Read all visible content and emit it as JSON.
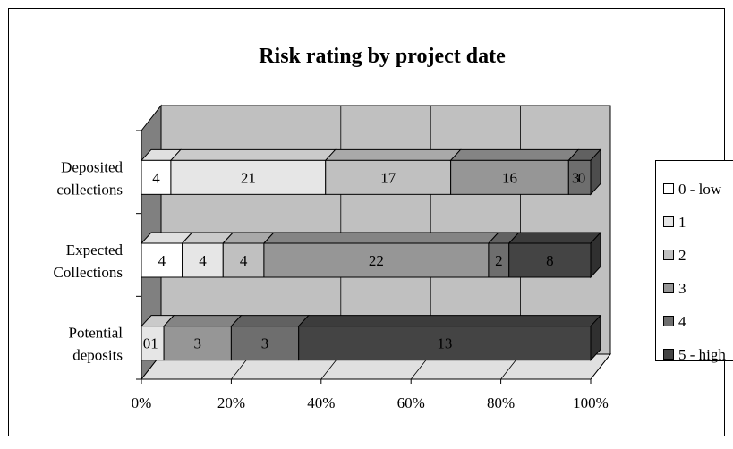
{
  "chart_data": {
    "type": "bar",
    "subtype": "100% stacked horizontal 3-D",
    "title": "Risk rating by project date",
    "categories": [
      "Deposited collections",
      "Expected Collections",
      "Potential deposits"
    ],
    "category_lines": [
      [
        "Deposited",
        "collections"
      ],
      [
        "Expected",
        "Collections"
      ],
      [
        "Potential",
        "deposits"
      ]
    ],
    "series": [
      {
        "name": "0 - low",
        "values": [
          4,
          4,
          0
        ],
        "color": "#ffffff"
      },
      {
        "name": "1",
        "values": [
          21,
          4,
          1
        ],
        "color": "#e6e6e6"
      },
      {
        "name": "2",
        "values": [
          17,
          4,
          0
        ],
        "color": "#c0c0c0"
      },
      {
        "name": "3",
        "values": [
          16,
          22,
          3
        ],
        "color": "#969696"
      },
      {
        "name": "4",
        "values": [
          3,
          2,
          3
        ],
        "color": "#6e6e6e"
      },
      {
        "name": "5 - high",
        "values": [
          0,
          8,
          13
        ],
        "color": "#444444"
      }
    ],
    "data_labels": [
      [
        "4",
        "21",
        "17",
        "16",
        "3",
        "0"
      ],
      [
        "4",
        "4",
        "4",
        "22",
        "2",
        "8"
      ],
      [
        "0",
        "1",
        "",
        "3",
        "3",
        "13"
      ]
    ],
    "x_ticks": [
      "0%",
      "20%",
      "40%",
      "60%",
      "80%",
      "100%"
    ],
    "xlim": [
      0,
      100
    ],
    "legend_position": "right",
    "grid": true
  },
  "colors": {
    "wall": "#c0c0c0",
    "side_wall": "#808080",
    "floor": "#e0e0e0",
    "grid": "#000000"
  }
}
